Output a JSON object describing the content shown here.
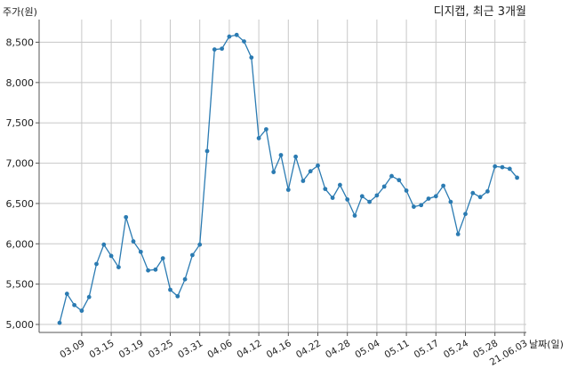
{
  "chart_data": {
    "type": "line",
    "title": "디지캡, 최근 3개월",
    "ylabel": "주가(원)",
    "xlabel": "날짜(일)",
    "ylim": [
      5000,
      8750
    ],
    "yticks": [
      5000,
      5500,
      6000,
      6500,
      7000,
      7500,
      8000,
      8500
    ],
    "ytick_labels": [
      "5,000",
      "5,500",
      "6,000",
      "6,500",
      "7,000",
      "7,500",
      "8,000",
      "8,500"
    ],
    "xtick_labels": [
      "03.09",
      "03.15",
      "03.19",
      "03.25",
      "03.31",
      "04.06",
      "04.12",
      "04.16",
      "04.22",
      "04.28",
      "05.04",
      "05.11",
      "05.17",
      "05.24",
      "05.28",
      "21.06.03"
    ],
    "xtick_positions": [
      3,
      7,
      11,
      15,
      19,
      23,
      27,
      31,
      35,
      39,
      43,
      47,
      51,
      55,
      59,
      63
    ],
    "grid": true,
    "color": "#2b7bb2",
    "series": [
      {
        "values": [
          5020,
          5380,
          5240,
          5170,
          5340,
          5750,
          5990,
          5850,
          5710,
          6330,
          6030,
          5900,
          5670,
          5680,
          5820,
          5430,
          5350,
          5560,
          5860,
          5990,
          7150,
          8410,
          8420,
          8570,
          8590,
          8510,
          8310,
          7310,
          7420,
          6890,
          7100,
          6670,
          7080,
          6780,
          6900,
          6970,
          6680,
          6570,
          6730,
          6550,
          6350,
          6590,
          6520,
          6600,
          6710,
          6840,
          6790,
          6660,
          6460,
          6480,
          6560,
          6590,
          6720,
          6520,
          6120,
          6370,
          6630,
          6580,
          6650,
          6960,
          6950,
          6930,
          6820
        ]
      }
    ]
  }
}
